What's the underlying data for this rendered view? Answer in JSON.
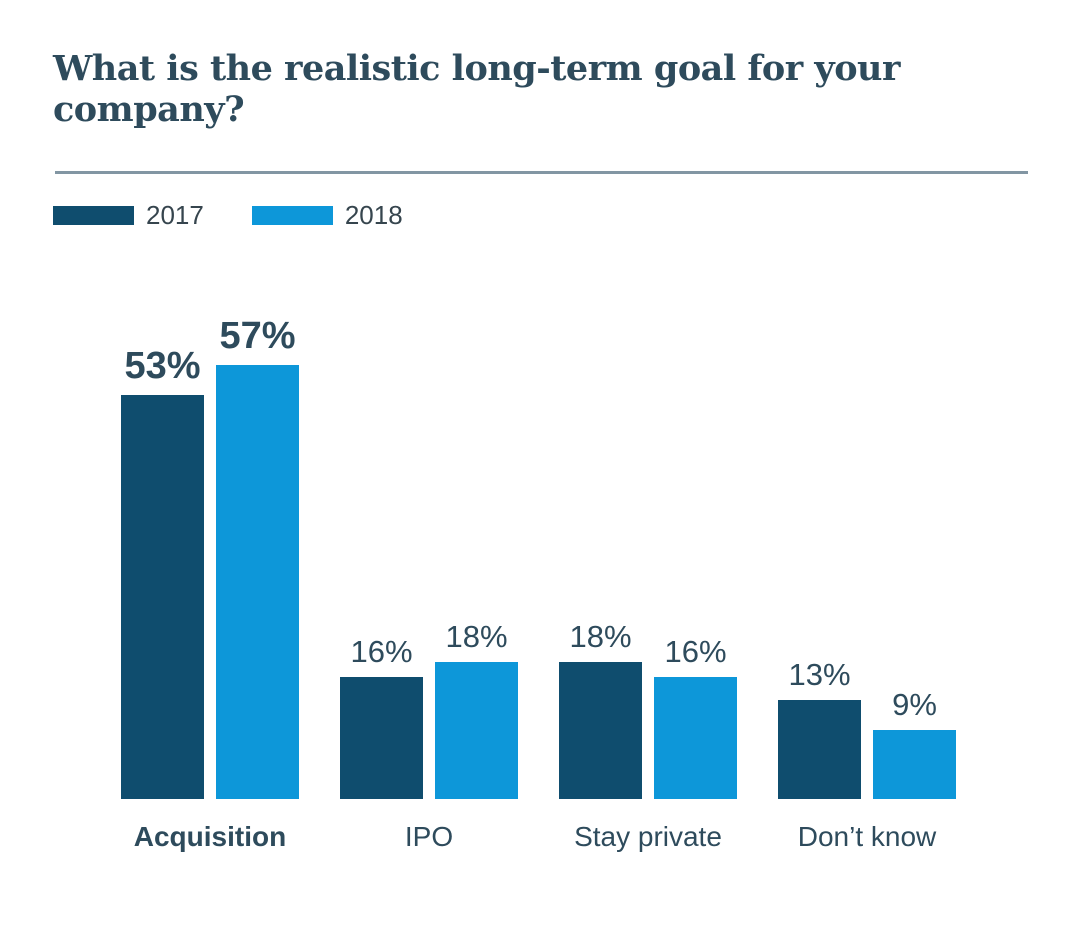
{
  "page": {
    "title": "What is the realistic long-term goal for your company?"
  },
  "legend": [
    {
      "label": "2017",
      "color": "#0f4d6e"
    },
    {
      "label": "2018",
      "color": "#0d97d9"
    }
  ],
  "colors": {
    "series_2017": "#0f4d6e",
    "series_2018": "#0d97d9",
    "text": "#2e4b5c",
    "divider": "#8296a3",
    "background": "#ffffff"
  },
  "chart_data": {
    "type": "bar",
    "title": "What is the realistic long-term goal for your company?",
    "categories": [
      "Acquisition",
      "IPO",
      "Stay private",
      "Don’t know"
    ],
    "series": [
      {
        "name": "2017",
        "color": "#0f4d6e",
        "values": [
          53,
          16,
          18,
          13
        ]
      },
      {
        "name": "2018",
        "color": "#0d97d9",
        "values": [
          57,
          18,
          16,
          9
        ]
      }
    ],
    "value_labels": [
      [
        "53%",
        "57%"
      ],
      [
        "16%",
        "18%"
      ],
      [
        "18%",
        "16%"
      ],
      [
        "13%",
        "9%"
      ]
    ],
    "unit": "%",
    "emphasized_category": "Acquisition",
    "ylim": [
      0,
      60
    ],
    "grid": false,
    "axes_shown": false,
    "legend_position": "top-left",
    "value_label_position": "above-bar"
  }
}
